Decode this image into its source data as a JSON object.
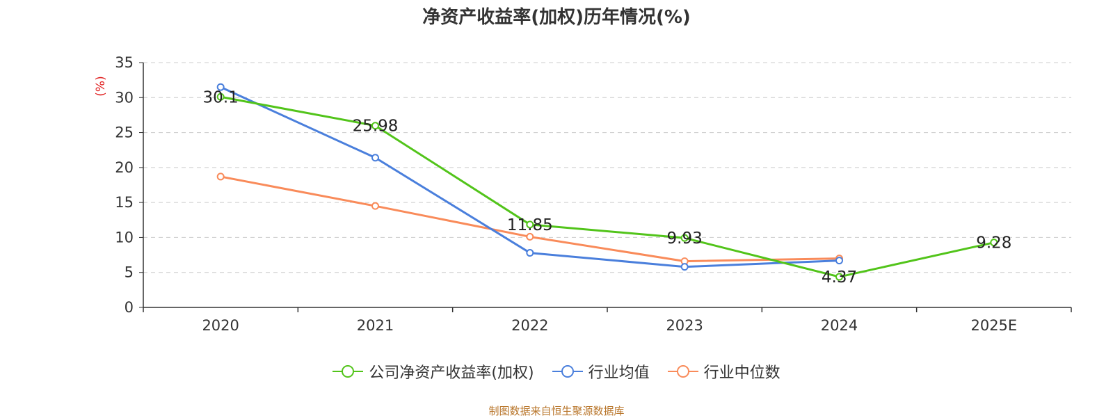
{
  "chart_data": {
    "type": "line",
    "title": "净资产收益率(加权)历年情况(%)",
    "ylabel": "(%)",
    "xlabel": "",
    "categories": [
      "2020",
      "2021",
      "2022",
      "2023",
      "2024",
      "2025E"
    ],
    "ylim": [
      0,
      35
    ],
    "yticks": [
      0,
      5,
      10,
      15,
      20,
      25,
      30,
      35
    ],
    "grid": true,
    "legend_position": "bottom",
    "series": [
      {
        "name": "公司净资产收益率(加权)",
        "color": "#52c41a",
        "values": [
          30.1,
          25.98,
          11.85,
          9.93,
          4.37,
          9.28
        ],
        "labels": [
          "30.1",
          "25.98",
          "11.85",
          "9.93",
          "4.37",
          "9.28"
        ]
      },
      {
        "name": "行业均值",
        "color": "#4a7fdc",
        "values": [
          31.5,
          21.4,
          7.8,
          5.8,
          6.7,
          null
        ]
      },
      {
        "name": "行业中位数",
        "color": "#f98b5a",
        "values": [
          18.7,
          14.5,
          10.1,
          6.6,
          7.0,
          null
        ]
      }
    ]
  },
  "source": "制图数据来自恒生聚源数据库"
}
